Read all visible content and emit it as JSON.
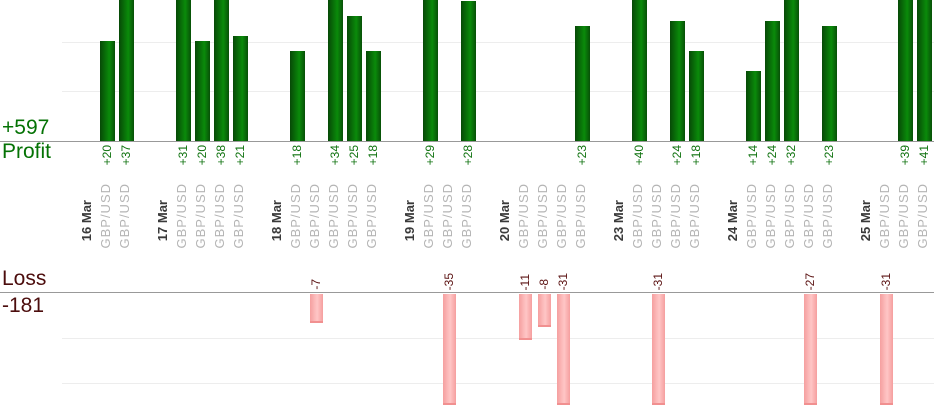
{
  "profit_panel": {
    "total_label": "+597",
    "axis_title": "Profit",
    "text_color": "#047204",
    "value_label_color": "#107310",
    "bar_color": "#0a8b0a"
  },
  "loss_panel": {
    "axis_title": "Loss",
    "total_label": "-181",
    "text_color": "#4c0d0d",
    "value_label_color": "#5c1414",
    "bar_color": "#ffc6c6"
  },
  "axis_labels": {
    "date_color": "#3a3a3a",
    "symbol_color": "#b5b5b5"
  },
  "chart_data": {
    "type": "bar",
    "title": "",
    "orientation": "vertical",
    "panels": [
      "profit (above upper baseline)",
      "loss (below lower baseline)"
    ],
    "totals": {
      "profit": 597,
      "loss": -181
    },
    "profit_axis": {
      "baseline_value": 0,
      "gridline_step": 10,
      "visible_max": 28,
      "bars_clip_above": 28
    },
    "loss_axis": {
      "baseline_value": 0,
      "gridline_step": 11,
      "visible_min": -27,
      "bars_clip_below": -27
    },
    "groups": [
      {
        "date": "16 Mar",
        "trades": [
          {
            "symbol": "GBP/USD",
            "value": 20,
            "label": "+20"
          },
          {
            "symbol": "GBP/USD",
            "value": 37,
            "label": "+37"
          }
        ]
      },
      {
        "date": "17 Mar",
        "trades": [
          {
            "symbol": "GBP/USD",
            "value": 31,
            "label": "+31"
          },
          {
            "symbol": "GBP/USD",
            "value": 20,
            "label": "+20"
          },
          {
            "symbol": "GBP/USD",
            "value": 38,
            "label": "+38"
          },
          {
            "symbol": "GBP/USD",
            "value": 21,
            "label": "+21"
          }
        ]
      },
      {
        "date": "18 Mar",
        "trades": [
          {
            "symbol": "GBP/USD",
            "value": 18,
            "label": "+18"
          },
          {
            "symbol": "GBP/USD",
            "value": -7,
            "label": "-7"
          },
          {
            "symbol": "GBP/USD",
            "value": 34,
            "label": "+34"
          },
          {
            "symbol": "GBP/USD",
            "value": 25,
            "label": "+25"
          },
          {
            "symbol": "GBP/USD",
            "value": 18,
            "label": "+18"
          }
        ]
      },
      {
        "date": "19 Mar",
        "trades": [
          {
            "symbol": "GBP/USD",
            "value": 29,
            "label": "+29"
          },
          {
            "symbol": "GBP/USD",
            "value": -35,
            "label": "-35"
          },
          {
            "symbol": "GBP/USD",
            "value": 28,
            "label": "+28"
          }
        ]
      },
      {
        "date": "20 Mar",
        "trades": [
          {
            "symbol": "GBP/USD",
            "value": -11,
            "label": "-11"
          },
          {
            "symbol": "GBP/USD",
            "value": -8,
            "label": "-8"
          },
          {
            "symbol": "GBP/USD",
            "value": -31,
            "label": "-31"
          },
          {
            "symbol": "GBP/USD",
            "value": 23,
            "label": "+23"
          }
        ]
      },
      {
        "date": "23 Mar",
        "trades": [
          {
            "symbol": "GBP/USD",
            "value": 40,
            "label": "+40"
          },
          {
            "symbol": "GBP/USD",
            "value": -31,
            "label": "-31"
          },
          {
            "symbol": "GBP/USD",
            "value": 24,
            "label": "+24"
          },
          {
            "symbol": "GBP/USD",
            "value": 18,
            "label": "+18"
          }
        ]
      },
      {
        "date": "24 Mar",
        "trades": [
          {
            "symbol": "GBP/USD",
            "value": 14,
            "label": "+14"
          },
          {
            "symbol": "GBP/USD",
            "value": 24,
            "label": "+24"
          },
          {
            "symbol": "GBP/USD",
            "value": 32,
            "label": "+32"
          },
          {
            "symbol": "GBP/USD",
            "value": -27,
            "label": "-27"
          },
          {
            "symbol": "GBP/USD",
            "value": 23,
            "label": "+23"
          }
        ]
      },
      {
        "date": "25 Mar",
        "trades": [
          {
            "symbol": "GBP/USD",
            "value": -31,
            "label": "-31"
          },
          {
            "symbol": "GBP/USD",
            "value": 39,
            "label": "+39"
          },
          {
            "symbol": "GBP/USD",
            "value": 41,
            "label": "+41"
          }
        ]
      }
    ]
  }
}
